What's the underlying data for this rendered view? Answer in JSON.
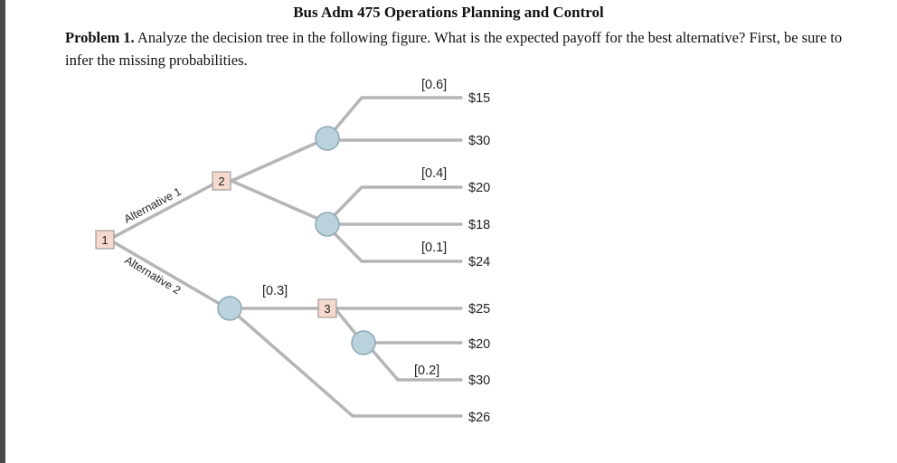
{
  "title": "Bus Adm 475 Operations Planning and Control",
  "problem": {
    "label": "Problem 1.",
    "text": " Analyze the decision tree in the following figure. What is the expected payoff for the best alternative? First, be sure to infer the missing probabilities."
  },
  "tree": {
    "decision_nodes": [
      "1",
      "2",
      "3"
    ],
    "alternatives": [
      "Alternative 1",
      "Alternative 2"
    ],
    "probabilities": [
      "[0.6]",
      "[0.4]",
      "[0.1]",
      "[0.3]",
      "[0.2]"
    ],
    "payoffs": [
      "$15",
      "$30",
      "$20",
      "$18",
      "$24",
      "$25",
      "$20",
      "$30",
      "$26"
    ]
  },
  "colors": {
    "branch": "#b5b5b5",
    "chance_fill": "#b9d2dc",
    "decision_fill": "#f5d9cf",
    "leftbar": "#4a4a4a"
  }
}
